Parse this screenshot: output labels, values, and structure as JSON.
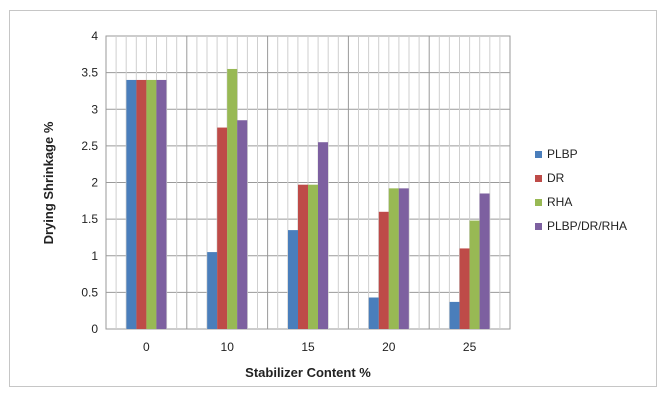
{
  "chart_data": {
    "type": "bar",
    "title": "",
    "xlabel": "Stabilizer Content %",
    "ylabel": "Drying Shrinkage %",
    "categories": [
      "0",
      "10",
      "15",
      "20",
      "25"
    ],
    "ylim": [
      0,
      4
    ],
    "yticks": [
      "0",
      "0.5",
      "1",
      "1.5",
      "2",
      "2.5",
      "3",
      "3.5",
      "4"
    ],
    "grid": true,
    "legend_position": "right",
    "series": [
      {
        "name": "PLBP",
        "color": "#4a7ebb",
        "values": [
          3.4,
          1.05,
          1.35,
          0.43,
          0.37
        ]
      },
      {
        "name": "DR",
        "color": "#be4b48",
        "values": [
          3.4,
          2.75,
          1.97,
          1.6,
          1.1
        ]
      },
      {
        "name": "RHA",
        "color": "#98b954",
        "values": [
          3.4,
          3.55,
          1.97,
          1.92,
          1.48
        ]
      },
      {
        "name": "PLBP/DR/RHA",
        "color": "#7d60a0",
        "values": [
          3.4,
          2.85,
          2.55,
          1.92,
          1.85
        ]
      }
    ]
  }
}
